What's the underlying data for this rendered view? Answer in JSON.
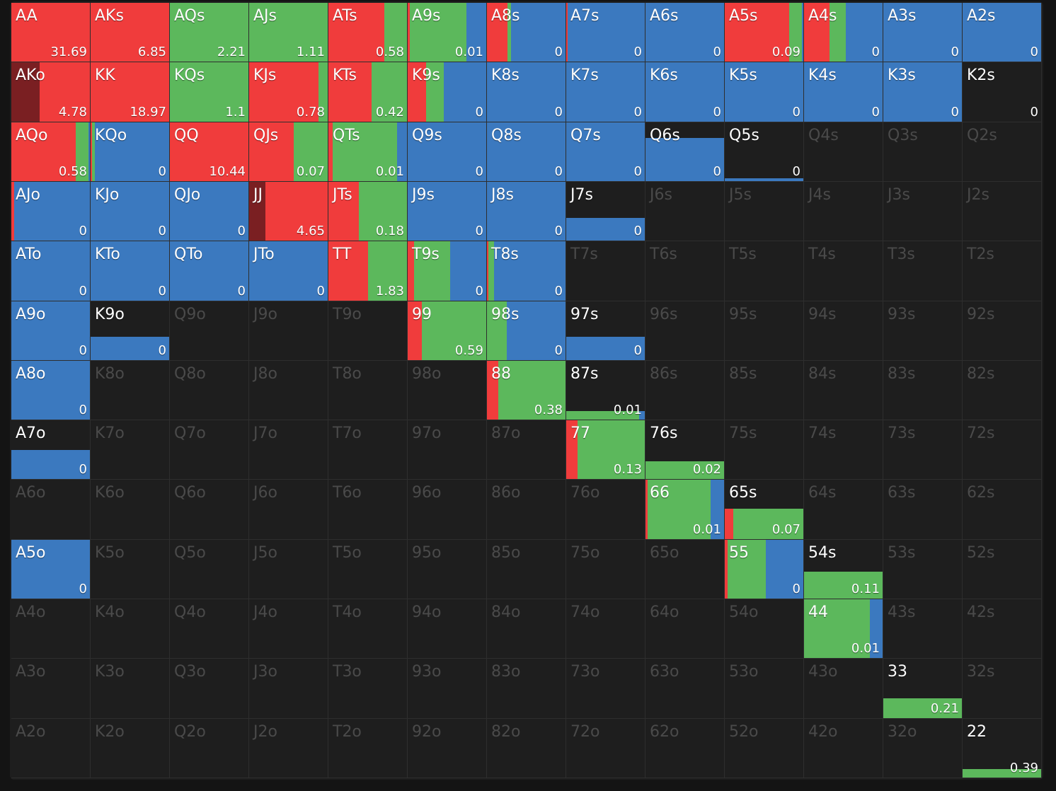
{
  "grid": {
    "rows": [
      [
        {
          "h": "AA",
          "v": "31.69",
          "w": 1,
          "m": [
            0,
            1,
            0,
            0
          ]
        },
        {
          "h": "AKs",
          "v": "6.85",
          "w": 1,
          "m": [
            0,
            1,
            0,
            0
          ]
        },
        {
          "h": "AQs",
          "v": "2.21",
          "w": 1,
          "m": [
            0,
            0,
            1,
            0
          ]
        },
        {
          "h": "AJs",
          "v": "1.11",
          "w": 1,
          "m": [
            0,
            0,
            1,
            0
          ]
        },
        {
          "h": "ATs",
          "v": "0.58",
          "w": 1,
          "m": [
            0,
            0.71,
            0.29,
            0
          ]
        },
        {
          "h": "A9s",
          "v": "0.01",
          "w": 1,
          "m": [
            0,
            0.03,
            0.72,
            0.25
          ]
        },
        {
          "h": "A8s",
          "v": "0",
          "w": 1,
          "m": [
            0,
            0.26,
            0.05,
            0.69
          ]
        },
        {
          "h": "A7s",
          "v": "0",
          "w": 1,
          "m": [
            0,
            0.02,
            0,
            0.98
          ]
        },
        {
          "h": "A6s",
          "v": "0",
          "w": 1,
          "m": [
            0,
            0,
            0,
            1
          ]
        },
        {
          "h": "A5s",
          "v": "0.09",
          "w": 1,
          "m": [
            0,
            0.82,
            0.16,
            0.02
          ]
        },
        {
          "h": "A4s",
          "v": "0",
          "w": 1,
          "m": [
            0,
            0.32,
            0.21,
            0.47
          ]
        },
        {
          "h": "A3s",
          "v": "0",
          "w": 1,
          "m": [
            0,
            0,
            0,
            1
          ]
        },
        {
          "h": "A2s",
          "v": "0",
          "w": 1,
          "m": [
            0,
            0,
            0,
            1
          ]
        }
      ],
      [
        {
          "h": "AKo",
          "v": "4.78",
          "w": 1,
          "m": [
            0.36,
            0.64,
            0,
            0
          ]
        },
        {
          "h": "KK",
          "v": "18.97",
          "w": 1,
          "m": [
            0,
            1,
            0,
            0
          ]
        },
        {
          "h": "KQs",
          "v": "1.1",
          "w": 1,
          "m": [
            0,
            0,
            1,
            0
          ]
        },
        {
          "h": "KJs",
          "v": "0.78",
          "w": 1,
          "m": [
            0,
            0.88,
            0.12,
            0
          ]
        },
        {
          "h": "KTs",
          "v": "0.42",
          "w": 1,
          "m": [
            0,
            0.55,
            0.45,
            0
          ]
        },
        {
          "h": "K9s",
          "v": "0",
          "w": 1,
          "m": [
            0,
            0.23,
            0.23,
            0.54
          ]
        },
        {
          "h": "K8s",
          "v": "0",
          "w": 1,
          "m": [
            0,
            0,
            0,
            1
          ]
        },
        {
          "h": "K7s",
          "v": "0",
          "w": 1,
          "m": [
            0,
            0,
            0,
            1
          ]
        },
        {
          "h": "K6s",
          "v": "0",
          "w": 1,
          "m": [
            0,
            0,
            0,
            1
          ]
        },
        {
          "h": "K5s",
          "v": "0",
          "w": 1,
          "m": [
            0,
            0,
            0,
            1
          ]
        },
        {
          "h": "K4s",
          "v": "0",
          "w": 1,
          "m": [
            0,
            0,
            0,
            1
          ]
        },
        {
          "h": "K3s",
          "v": "0",
          "w": 1,
          "m": [
            0,
            0,
            0,
            1
          ]
        },
        {
          "h": "K2s",
          "v": "0",
          "w": 0,
          "m": [
            0,
            0,
            0,
            1
          ]
        }
      ],
      [
        {
          "h": "AQo",
          "v": "0.58",
          "w": 1,
          "m": [
            0,
            0.82,
            0.16,
            0.02
          ]
        },
        {
          "h": "KQo",
          "v": "0",
          "w": 1,
          "m": [
            0,
            0.02,
            0.03,
            0.95
          ]
        },
        {
          "h": "QQ",
          "v": "10.44",
          "w": 1,
          "m": [
            0,
            1,
            0,
            0
          ]
        },
        {
          "h": "QJs",
          "v": "0.07",
          "w": 1,
          "m": [
            0,
            0.57,
            0.43,
            0
          ]
        },
        {
          "h": "QTs",
          "v": "0.01",
          "w": 1,
          "m": [
            0,
            0.05,
            0.82,
            0.13
          ]
        },
        {
          "h": "Q9s",
          "v": "0",
          "w": 1,
          "m": [
            0,
            0,
            0,
            1
          ]
        },
        {
          "h": "Q8s",
          "v": "0",
          "w": 1,
          "m": [
            0,
            0,
            0,
            1
          ]
        },
        {
          "h": "Q7s",
          "v": "0",
          "w": 1,
          "m": [
            0,
            0,
            0,
            1
          ]
        },
        {
          "h": "Q6s",
          "v": "0",
          "w": 0.73,
          "m": [
            0,
            0,
            0,
            1
          ]
        },
        {
          "h": "Q5s",
          "v": "0",
          "w": 0.05,
          "m": [
            0,
            0,
            0,
            1
          ]
        },
        {
          "h": "Q4s"
        },
        {
          "h": "Q3s"
        },
        {
          "h": "Q2s"
        }
      ],
      [
        {
          "h": "AJo",
          "v": "0",
          "w": 1,
          "m": [
            0,
            0.04,
            0,
            0.96
          ]
        },
        {
          "h": "KJo",
          "v": "0",
          "w": 1,
          "m": [
            0,
            0,
            0,
            1
          ]
        },
        {
          "h": "QJo",
          "v": "0",
          "w": 1,
          "m": [
            0,
            0,
            0,
            1
          ]
        },
        {
          "h": "JJ",
          "v": "4.65",
          "w": 1,
          "m": [
            0.21,
            0.79,
            0,
            0
          ]
        },
        {
          "h": "JTs",
          "v": "0.18",
          "w": 1,
          "m": [
            0,
            0.39,
            0.61,
            0
          ]
        },
        {
          "h": "J9s",
          "v": "0",
          "w": 1,
          "m": [
            0,
            0,
            0,
            1
          ]
        },
        {
          "h": "J8s",
          "v": "0",
          "w": 1,
          "m": [
            0,
            0,
            0,
            1
          ]
        },
        {
          "h": "J7s",
          "v": "0",
          "w": 0.39,
          "m": [
            0,
            0,
            0,
            1
          ]
        },
        {
          "h": "J6s"
        },
        {
          "h": "J5s"
        },
        {
          "h": "J4s"
        },
        {
          "h": "J3s"
        },
        {
          "h": "J2s"
        }
      ],
      [
        {
          "h": "ATo",
          "v": "0",
          "w": 1,
          "m": [
            0,
            0,
            0,
            1
          ]
        },
        {
          "h": "KTo",
          "v": "0",
          "w": 1,
          "m": [
            0,
            0,
            0,
            1
          ]
        },
        {
          "h": "QTo",
          "v": "0",
          "w": 1,
          "m": [
            0,
            0,
            0,
            1
          ]
        },
        {
          "h": "JTo",
          "v": "0",
          "w": 1,
          "m": [
            0,
            0,
            0,
            1
          ]
        },
        {
          "h": "TT",
          "v": "1.83",
          "w": 1,
          "m": [
            0,
            0.5,
            0.5,
            0
          ]
        },
        {
          "h": "T9s",
          "v": "0",
          "w": 1,
          "m": [
            0,
            0.08,
            0.46,
            0.46
          ]
        },
        {
          "h": "T8s",
          "v": "0",
          "w": 1,
          "m": [
            0,
            0.02,
            0.07,
            0.91
          ]
        },
        {
          "h": "T7s"
        },
        {
          "h": "T6s"
        },
        {
          "h": "T5s"
        },
        {
          "h": "T4s"
        },
        {
          "h": "T3s"
        },
        {
          "h": "T2s"
        }
      ],
      [
        {
          "h": "A9o",
          "v": "0",
          "w": 1,
          "m": [
            0,
            0,
            0,
            1
          ]
        },
        {
          "h": "K9o",
          "v": "0",
          "w": 0.39,
          "m": [
            0,
            0,
            0,
            1
          ]
        },
        {
          "h": "Q9o"
        },
        {
          "h": "J9o"
        },
        {
          "h": "T9o"
        },
        {
          "h": "99",
          "v": "0.59",
          "w": 1,
          "m": [
            0,
            0.18,
            0.82,
            0
          ]
        },
        {
          "h": "98s",
          "v": "0",
          "w": 1,
          "m": [
            0,
            0,
            0.25,
            0.75
          ]
        },
        {
          "h": "97s",
          "v": "0",
          "w": 0.39,
          "m": [
            0,
            0,
            0,
            1
          ]
        },
        {
          "h": "96s"
        },
        {
          "h": "95s"
        },
        {
          "h": "94s"
        },
        {
          "h": "93s"
        },
        {
          "h": "92s"
        }
      ],
      [
        {
          "h": "A8o",
          "v": "0",
          "w": 1,
          "m": [
            0,
            0,
            0,
            1
          ]
        },
        {
          "h": "K8o"
        },
        {
          "h": "Q8o"
        },
        {
          "h": "J8o"
        },
        {
          "h": "T8o"
        },
        {
          "h": "98o"
        },
        {
          "h": "88",
          "v": "0.38",
          "w": 1,
          "m": [
            0,
            0.14,
            0.86,
            0
          ]
        },
        {
          "h": "87s",
          "v": "0.01",
          "w": 0.14,
          "m": [
            0,
            0,
            0.93,
            0.07
          ]
        },
        {
          "h": "86s"
        },
        {
          "h": "85s"
        },
        {
          "h": "84s"
        },
        {
          "h": "83s"
        },
        {
          "h": "82s"
        }
      ],
      [
        {
          "h": "A7o",
          "v": "0",
          "w": 0.5,
          "m": [
            0,
            0,
            0,
            1
          ]
        },
        {
          "h": "K7o"
        },
        {
          "h": "Q7o"
        },
        {
          "h": "J7o"
        },
        {
          "h": "T7o"
        },
        {
          "h": "97o"
        },
        {
          "h": "87o"
        },
        {
          "h": "77",
          "v": "0.13",
          "w": 1,
          "m": [
            0,
            0.14,
            0.86,
            0
          ]
        },
        {
          "h": "76s",
          "v": "0.02",
          "w": 0.31,
          "m": [
            0,
            0,
            1,
            0
          ]
        },
        {
          "h": "75s"
        },
        {
          "h": "74s"
        },
        {
          "h": "73s"
        },
        {
          "h": "72s"
        }
      ],
      [
        {
          "h": "A6o"
        },
        {
          "h": "K6o"
        },
        {
          "h": "Q6o"
        },
        {
          "h": "J6o"
        },
        {
          "h": "T6o"
        },
        {
          "h": "96o"
        },
        {
          "h": "86o"
        },
        {
          "h": "76o"
        },
        {
          "h": "66",
          "v": "0.01",
          "w": 1,
          "m": [
            0,
            0.03,
            0.8,
            0.17
          ]
        },
        {
          "h": "65s",
          "v": "0.07",
          "w": 0.51,
          "m": [
            0,
            0.11,
            0.89,
            0
          ]
        },
        {
          "h": "64s"
        },
        {
          "h": "63s"
        },
        {
          "h": "62s"
        }
      ],
      [
        {
          "h": "A5o",
          "v": "0",
          "w": 1,
          "m": [
            0,
            0,
            0,
            1
          ]
        },
        {
          "h": "K5o"
        },
        {
          "h": "Q5o"
        },
        {
          "h": "J5o"
        },
        {
          "h": "T5o"
        },
        {
          "h": "95o"
        },
        {
          "h": "85o"
        },
        {
          "h": "75o"
        },
        {
          "h": "65o"
        },
        {
          "h": "55",
          "v": "0",
          "w": 1,
          "m": [
            0,
            0.04,
            0.48,
            0.48
          ]
        },
        {
          "h": "54s",
          "v": "0.11",
          "w": 0.46,
          "m": [
            0,
            0,
            1,
            0
          ]
        },
        {
          "h": "53s"
        },
        {
          "h": "52s"
        }
      ],
      [
        {
          "h": "A4o"
        },
        {
          "h": "K4o"
        },
        {
          "h": "Q4o"
        },
        {
          "h": "J4o"
        },
        {
          "h": "T4o"
        },
        {
          "h": "94o"
        },
        {
          "h": "84o"
        },
        {
          "h": "74o"
        },
        {
          "h": "64o"
        },
        {
          "h": "54o"
        },
        {
          "h": "44",
          "v": "0.01",
          "w": 1,
          "m": [
            0,
            0,
            0.84,
            0.16
          ]
        },
        {
          "h": "43s"
        },
        {
          "h": "42s"
        }
      ],
      [
        {
          "h": "A3o"
        },
        {
          "h": "K3o"
        },
        {
          "h": "Q3o"
        },
        {
          "h": "J3o"
        },
        {
          "h": "T3o"
        },
        {
          "h": "93o"
        },
        {
          "h": "83o"
        },
        {
          "h": "73o"
        },
        {
          "h": "63o"
        },
        {
          "h": "53o"
        },
        {
          "h": "43o"
        },
        {
          "h": "33",
          "v": "0.21",
          "w": 0.33,
          "m": [
            0,
            0,
            1,
            0
          ]
        },
        {
          "h": "32s"
        }
      ],
      [
        {
          "h": "A2o"
        },
        {
          "h": "K2o"
        },
        {
          "h": "Q2o"
        },
        {
          "h": "J2o"
        },
        {
          "h": "T2o"
        },
        {
          "h": "92o"
        },
        {
          "h": "82o"
        },
        {
          "h": "72o"
        },
        {
          "h": "62o"
        },
        {
          "h": "52o"
        },
        {
          "h": "42o"
        },
        {
          "h": "32o"
        },
        {
          "h": "22",
          "v": "0.39",
          "w": 0.14,
          "m": [
            0,
            0,
            1,
            0
          ]
        }
      ]
    ]
  }
}
